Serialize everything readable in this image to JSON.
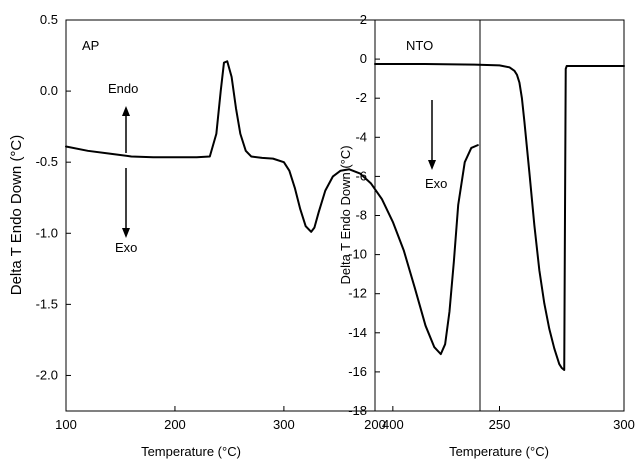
{
  "chart_data": [
    {
      "type": "line",
      "title": "",
      "xlabel": "Temperature (°C)",
      "ylabel": "Delta T Endo Down (°C)",
      "xlim": [
        100,
        480
      ],
      "ylim": [
        -2.25,
        0.5
      ],
      "xticks": [
        100,
        200,
        300,
        400
      ],
      "yticks": [
        0.5,
        0.0,
        -0.5,
        -1.0,
        -1.5,
        -2.0
      ],
      "ytick_labels": [
        "0.5",
        "0.0",
        "-0.5",
        "-1.0",
        "-1.5",
        "-2.0"
      ],
      "grid": false,
      "annotations": [
        {
          "text": "AP"
        },
        {
          "text": "Endo",
          "arrow": "up"
        },
        {
          "text": "Exo",
          "arrow": "down"
        }
      ],
      "series": [
        {
          "x": [
            100,
            120,
            140,
            160,
            180,
            200,
            220,
            232,
            238,
            242,
            245,
            248,
            252,
            256,
            260,
            265,
            270,
            280,
            290,
            300,
            305,
            310,
            315,
            320,
            325,
            328,
            332,
            338,
            345,
            352,
            360,
            370,
            380,
            390,
            400,
            410,
            420,
            430,
            438,
            444,
            448,
            452,
            456,
            460,
            466,
            472,
            478
          ],
          "y": [
            -0.39,
            -0.42,
            -0.44,
            -0.46,
            -0.465,
            -0.465,
            -0.465,
            -0.46,
            -0.3,
            -0.0,
            0.2,
            0.21,
            0.1,
            -0.12,
            -0.3,
            -0.42,
            -0.46,
            -0.47,
            -0.475,
            -0.5,
            -0.56,
            -0.68,
            -0.83,
            -0.95,
            -0.99,
            -0.96,
            -0.85,
            -0.7,
            -0.6,
            -0.56,
            -0.55,
            -0.58,
            -0.65,
            -0.76,
            -0.92,
            -1.12,
            -1.38,
            -1.65,
            -1.8,
            -1.85,
            -1.78,
            -1.55,
            -1.2,
            -0.8,
            -0.5,
            -0.4,
            -0.38
          ]
        }
      ]
    },
    {
      "type": "line",
      "title": "",
      "xlabel": "Temperature (°C)",
      "ylabel": "Delta T Endo Down (°C)",
      "xlim": [
        200,
        300
      ],
      "ylim": [
        -18,
        2
      ],
      "xticks": [
        200,
        250,
        300
      ],
      "yticks": [
        2,
        0,
        -2,
        -4,
        -6,
        -8,
        -10,
        -12,
        -14,
        -16,
        -18
      ],
      "ytick_labels": [
        "2",
        "0",
        "-2",
        "-4",
        "-6",
        "-8",
        "-10",
        "-12",
        "-14",
        "-16",
        "-18"
      ],
      "grid": false,
      "annotations": [
        {
          "text": "NTO"
        },
        {
          "text": "Exo",
          "arrow": "down"
        }
      ],
      "series": [
        {
          "x": [
            200,
            220,
            240,
            250,
            254,
            256,
            257,
            258,
            259,
            260,
            262,
            264,
            266,
            268,
            270,
            272,
            274,
            275,
            276,
            276.3,
            276.6,
            277,
            285,
            300
          ],
          "y": [
            -0.25,
            -0.25,
            -0.28,
            -0.32,
            -0.42,
            -0.6,
            -0.8,
            -1.2,
            -2.0,
            -3.2,
            -5.8,
            -8.5,
            -10.8,
            -12.5,
            -13.8,
            -14.8,
            -15.6,
            -15.8,
            -15.9,
            -8.0,
            -0.5,
            -0.35,
            -0.35,
            -0.35
          ]
        }
      ]
    }
  ]
}
